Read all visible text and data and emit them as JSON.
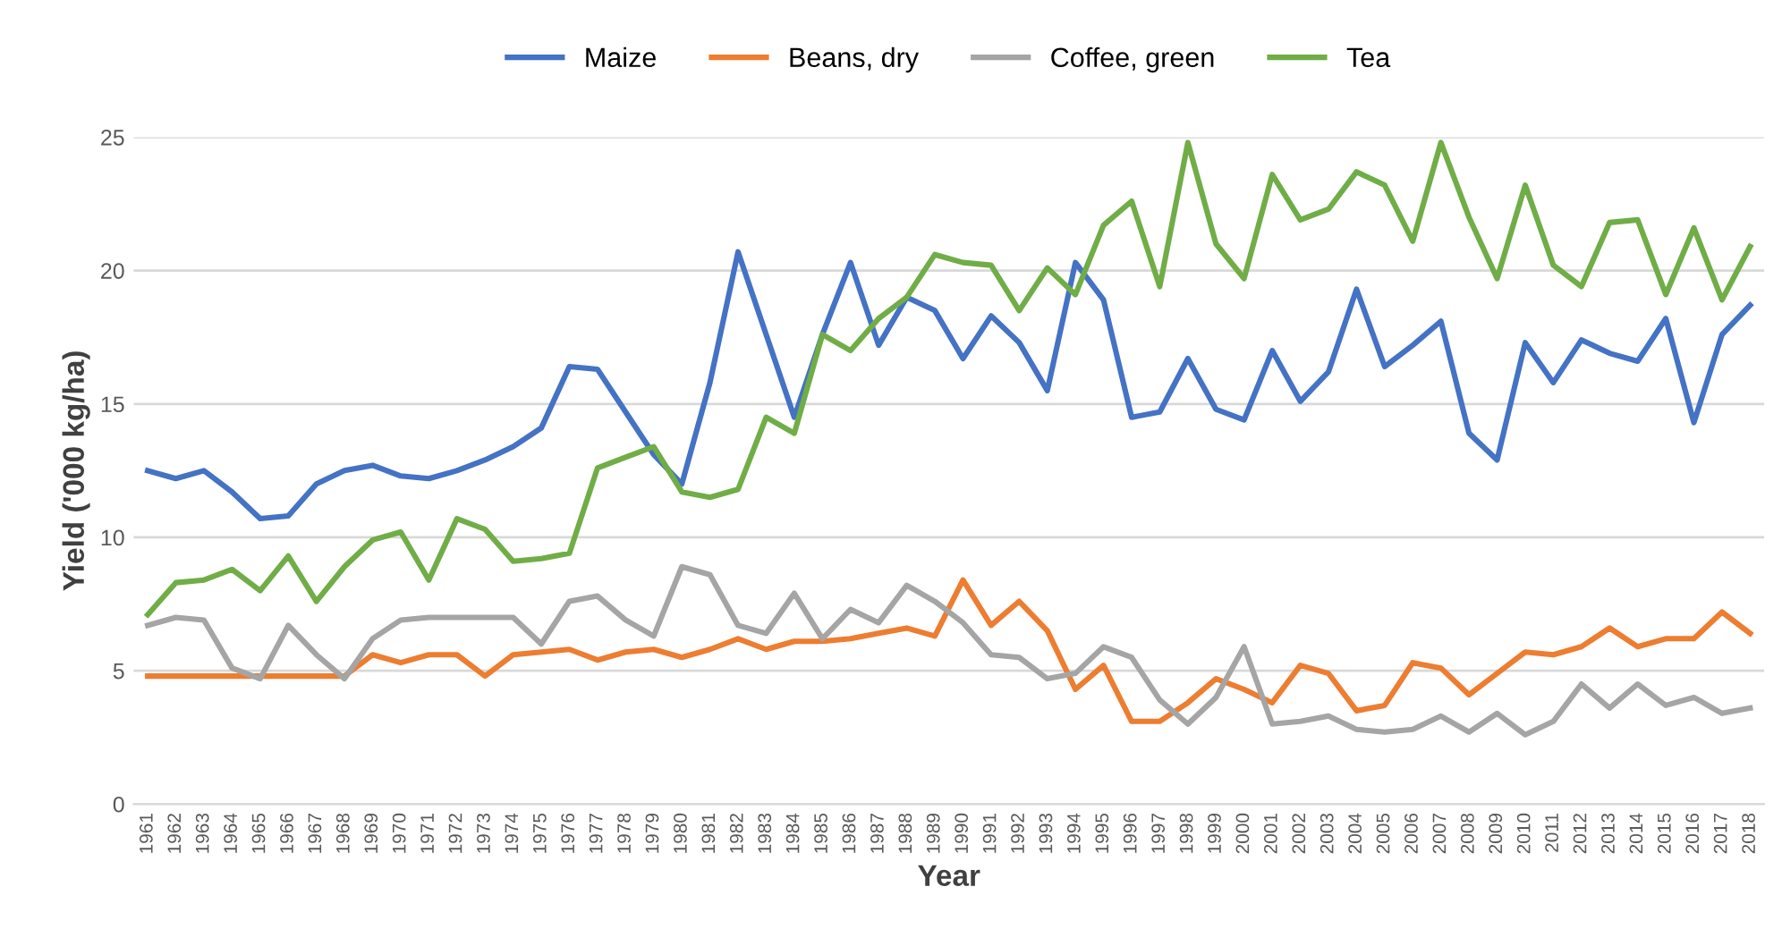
{
  "chart_data": {
    "type": "line",
    "xlabel": "Year",
    "ylabel": "Yield ('000 kg/ha)",
    "categories": [
      "1961",
      "1962",
      "1963",
      "1964",
      "1965",
      "1966",
      "1967",
      "1968",
      "1969",
      "1970",
      "1971",
      "1972",
      "1973",
      "1974",
      "1975",
      "1976",
      "1977",
      "1978",
      "1979",
      "1980",
      "1981",
      "1982",
      "1983",
      "1984",
      "1985",
      "1986",
      "1987",
      "1988",
      "1989",
      "1990",
      "1991",
      "1992",
      "1993",
      "1994",
      "1995",
      "1996",
      "1997",
      "1998",
      "1999",
      "2000",
      "2001",
      "2002",
      "2003",
      "2004",
      "2005",
      "2006",
      "2007",
      "2008",
      "2009",
      "2010",
      "2011",
      "2012",
      "2013",
      "2014",
      "2015",
      "2016",
      "2017",
      "2018"
    ],
    "series": [
      {
        "name": "Maize",
        "color": "#4472c4",
        "values": [
          12.5,
          12.2,
          12.5,
          11.7,
          10.7,
          10.8,
          12.0,
          12.5,
          12.7,
          12.3,
          12.2,
          12.5,
          12.9,
          13.4,
          14.1,
          16.4,
          16.3,
          14.7,
          13.1,
          12.0,
          15.8,
          20.7,
          17.6,
          14.5,
          17.6,
          20.3,
          17.2,
          19.0,
          18.5,
          16.7,
          18.3,
          17.3,
          15.5,
          20.3,
          18.9,
          14.5,
          14.7,
          16.7,
          14.8,
          14.4,
          17.0,
          15.1,
          16.2,
          19.3,
          16.4,
          17.2,
          18.1,
          13.9,
          12.9,
          17.3,
          15.8,
          17.4,
          16.9,
          16.6,
          18.2,
          14.3,
          17.6,
          18.7
        ]
      },
      {
        "name": "Beans, dry",
        "color": "#ed7d31",
        "values": [
          4.8,
          4.8,
          4.8,
          4.8,
          4.8,
          4.8,
          4.8,
          4.8,
          5.6,
          5.3,
          5.6,
          5.6,
          4.8,
          5.6,
          5.7,
          5.8,
          5.4,
          5.7,
          5.8,
          5.5,
          5.8,
          6.2,
          5.8,
          6.1,
          6.1,
          6.2,
          6.4,
          6.6,
          6.3,
          8.4,
          6.7,
          7.6,
          6.5,
          4.3,
          5.2,
          3.1,
          3.1,
          3.8,
          4.7,
          4.3,
          3.8,
          5.2,
          4.9,
          3.5,
          3.7,
          5.3,
          5.1,
          4.1,
          4.9,
          5.7,
          5.6,
          5.9,
          6.6,
          5.9,
          6.2,
          6.2,
          7.2,
          6.4
        ]
      },
      {
        "name": "Coffee, green",
        "color": "#a5a5a5",
        "values": [
          6.7,
          7.0,
          6.9,
          5.1,
          4.7,
          6.7,
          5.6,
          4.7,
          6.2,
          6.9,
          7.0,
          7.0,
          7.0,
          7.0,
          6.0,
          7.6,
          7.8,
          6.9,
          6.3,
          8.9,
          8.6,
          6.7,
          6.4,
          7.9,
          6.2,
          7.3,
          6.8,
          8.2,
          7.6,
          6.8,
          5.6,
          5.5,
          4.7,
          4.9,
          5.9,
          5.5,
          3.9,
          3.0,
          4.0,
          5.9,
          3.0,
          3.1,
          3.3,
          2.8,
          2.7,
          2.8,
          3.3,
          2.7,
          3.4,
          2.6,
          3.1,
          4.5,
          3.6,
          4.5,
          3.7,
          4.0,
          3.4,
          3.6
        ]
      },
      {
        "name": "Tea",
        "color": "#70ad47",
        "values": [
          7.1,
          8.3,
          8.4,
          8.8,
          8.0,
          9.3,
          7.6,
          8.9,
          9.9,
          10.2,
          8.4,
          10.7,
          10.3,
          9.1,
          9.2,
          9.4,
          12.6,
          13.0,
          13.4,
          11.7,
          11.5,
          11.8,
          14.5,
          13.9,
          17.6,
          17.0,
          18.2,
          19.0,
          20.6,
          20.3,
          20.2,
          18.5,
          20.1,
          19.1,
          21.7,
          22.6,
          19.4,
          24.8,
          21.0,
          19.7,
          23.6,
          21.9,
          22.3,
          23.7,
          23.2,
          21.1,
          24.8,
          22.0,
          19.7,
          23.2,
          20.2,
          19.4,
          21.8,
          21.9,
          19.1,
          21.6,
          18.9,
          20.9
        ]
      }
    ],
    "ylim": [
      0,
      25
    ],
    "yticks": [
      0,
      5,
      10,
      15,
      20,
      25
    ],
    "grid": "y",
    "legend": "top",
    "marker": "none",
    "line_style": "solid"
  }
}
